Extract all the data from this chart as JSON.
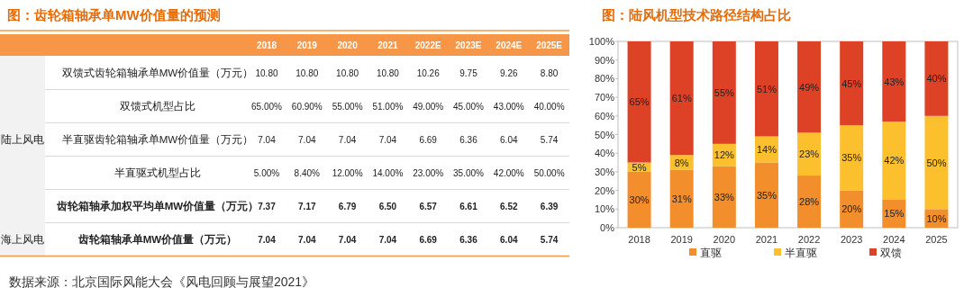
{
  "chart_data": [
    {
      "type": "heatmap",
      "title": "图：齿轮箱轴承单MW价值量的预测",
      "categories": [
        "2018",
        "2019",
        "2020",
        "2021",
        "2022E",
        "2023E",
        "2024E",
        "2025E"
      ],
      "y_categories": [
        "双馈式齿轮箱轴承单MW价值量（万元）",
        "双馈式机型占比",
        "半直驱齿轮箱轴承单MW价值量（万元）",
        "半直驱式机型占比",
        "齿轮箱轴承加权平均单MW价值量（万元）",
        "齿轮箱轴承单MW价值量（万元）"
      ],
      "y2_categories": [
        null,
        null,
        "陆上风电",
        null,
        null,
        "海上风电"
      ],
      "cells": [
        [
          10.8,
          10.8,
          10.8,
          10.8,
          10.26,
          9.75,
          9.26,
          8.8
        ],
        [
          65.0,
          60.9,
          55.0,
          51.0,
          49.0,
          45.0,
          43.0,
          40.0
        ],
        [
          7.04,
          7.04,
          7.04,
          7.04,
          6.69,
          6.36,
          6.04,
          5.74
        ],
        [
          5.0,
          8.4,
          12.0,
          14.0,
          23.0,
          35.0,
          42.0,
          50.0
        ],
        [
          7.37,
          7.17,
          6.79,
          6.5,
          6.57,
          6.61,
          6.52,
          6.39
        ],
        [
          7.04,
          7.04,
          7.04,
          7.04,
          6.69,
          6.36,
          6.04,
          5.74
        ]
      ],
      "cell_labels": [
        [
          "10.80",
          "10.80",
          "10.80",
          "10.80",
          "10.26",
          "9.75",
          "9.26",
          "8.80"
        ],
        [
          "65.00%",
          "60.90%",
          "55.00%",
          "51.00%",
          "49.00%",
          "45.00%",
          "43.00%",
          "40.00%"
        ],
        [
          "7.04",
          "7.04",
          "7.04",
          "7.04",
          "6.69",
          "6.36",
          "6.04",
          "5.74"
        ],
        [
          "5.00%",
          "8.40%",
          "12.00%",
          "14.00%",
          "23.00%",
          "35.00%",
          "42.00%",
          "50.00%"
        ],
        [
          "7.37",
          "7.17",
          "6.79",
          "6.50",
          "6.57",
          "6.61",
          "6.52",
          "6.39"
        ],
        [
          "7.04",
          "7.04",
          "7.04",
          "7.04",
          "6.69",
          "6.36",
          "6.04",
          "5.74"
        ]
      ],
      "annotations": [
        "数据来源：北京国际风能大会《风电回顾与展望2021》"
      ]
    },
    {
      "type": "bar",
      "stacked": true,
      "title": "图：陆风机型技术路径结构占比",
      "categories": [
        "2018",
        "2019",
        "2020",
        "2021",
        "2022",
        "2023",
        "2024",
        "2025"
      ],
      "ylim": [
        0,
        100
      ],
      "yticks": [
        {
          "value": 0,
          "label": "0%"
        },
        {
          "value": 10,
          "label": "10%"
        },
        {
          "value": 20,
          "label": "20%"
        },
        {
          "value": 30,
          "label": "30%"
        },
        {
          "value": 40,
          "label": "40%"
        },
        {
          "value": 50,
          "label": "50%"
        },
        {
          "value": 60,
          "label": "60%"
        },
        {
          "value": 70,
          "label": "70%"
        },
        {
          "value": 80,
          "label": "80%"
        },
        {
          "value": 90,
          "label": "90%"
        },
        {
          "value": 100,
          "label": "100%"
        }
      ],
      "legend": "bottom",
      "series": [
        {
          "name": "直驱",
          "color": "#f28e2b",
          "values": [
            30,
            31,
            33,
            35,
            28,
            20,
            15,
            10
          ],
          "value_labels": [
            "30%",
            "31%",
            "33%",
            "35%",
            "28%",
            "20%",
            "15%",
            "10%"
          ]
        },
        {
          "name": "半直驱",
          "color": "#fcc02e",
          "values": [
            5,
            8,
            12,
            14,
            23,
            35,
            42,
            50
          ],
          "value_labels": [
            "5%",
            "8%",
            "12%",
            "14%",
            "23%",
            "35%",
            "42%",
            "50%"
          ]
        },
        {
          "name": "双馈",
          "color": "#de4226",
          "values": [
            65,
            61,
            55,
            51,
            49,
            45,
            43,
            40
          ],
          "value_labels": [
            "65%",
            "61%",
            "55%",
            "51%",
            "49%",
            "45%",
            "43%",
            "40%"
          ]
        }
      ]
    }
  ]
}
